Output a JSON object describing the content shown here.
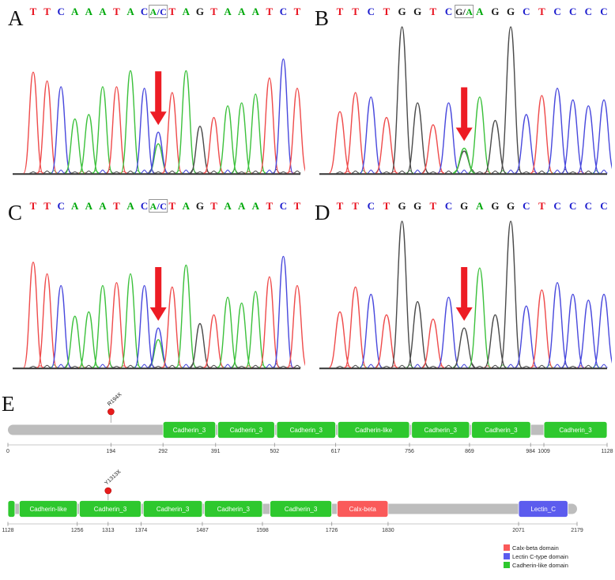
{
  "figure": {
    "panel_labels": [
      "A",
      "B",
      "C",
      "D",
      "E"
    ]
  },
  "colors": {
    "letters": {
      "A": "#00a80b",
      "C": "#1c1ccd",
      "G": "#1a1a1a",
      "T": "#e8121f"
    },
    "traces": {
      "A": "#3cc13c",
      "C": "#4848dd",
      "G": "#4a4a4a",
      "T": "#ef4b4b"
    },
    "arrow": "#ed1c24"
  },
  "chart_data": [
    {
      "type": "line",
      "panel": "A",
      "sequence": [
        "T",
        "T",
        "C",
        "A",
        "A",
        "A",
        "T",
        "A",
        "C",
        {
          "t": "A/C",
          "boxed": true,
          "ck": [
            "A",
            "C",
            "C"
          ]
        },
        "T",
        "A",
        "G",
        "T",
        "A",
        "A",
        "A",
        "T",
        "C",
        "T"
      ],
      "arrow_index": 9,
      "peaks": [
        {
          "base": "T",
          "h": 0.69
        },
        {
          "base": "T",
          "h": 0.63
        },
        {
          "base": "C",
          "h": 0.59
        },
        {
          "base": "A",
          "h": 0.37
        },
        {
          "base": "A",
          "h": 0.4
        },
        {
          "base": "A",
          "h": 0.59
        },
        {
          "base": "T",
          "h": 0.59
        },
        {
          "base": "A",
          "h": 0.7
        },
        {
          "base": "C",
          "h": 0.58
        },
        {
          "het": [
            {
              "base": "C",
              "h": 0.28
            },
            {
              "base": "A",
              "h": 0.2
            }
          ]
        },
        {
          "base": "T",
          "h": 0.55
        },
        {
          "base": "A",
          "h": 0.7
        },
        {
          "base": "G",
          "h": 0.32
        },
        {
          "base": "T",
          "h": 0.38
        },
        {
          "base": "A",
          "h": 0.46
        },
        {
          "base": "A",
          "h": 0.48
        },
        {
          "base": "A",
          "h": 0.54
        },
        {
          "base": "T",
          "h": 0.65
        },
        {
          "base": "C",
          "h": 0.78
        },
        {
          "base": "T",
          "h": 0.58
        }
      ]
    },
    {
      "type": "line",
      "panel": "B",
      "sequence": [
        "T",
        "T",
        "C",
        "T",
        "G",
        "G",
        "T",
        "C",
        {
          "t": "G/A",
          "boxed": true,
          "ck": [
            "G",
            "G",
            "A"
          ]
        },
        "A",
        "G",
        "G",
        "C",
        "T",
        "C",
        "C",
        "C",
        "C"
      ],
      "arrow_index": 8,
      "peaks": [
        {
          "base": "T",
          "h": 0.42
        },
        {
          "base": "T",
          "h": 0.55
        },
        {
          "base": "C",
          "h": 0.52
        },
        {
          "base": "T",
          "h": 0.38
        },
        {
          "base": "G",
          "h": 1.0
        },
        {
          "base": "G",
          "h": 0.48
        },
        {
          "base": "T",
          "h": 0.33
        },
        {
          "base": "C",
          "h": 0.48
        },
        {
          "het": [
            {
              "base": "A",
              "h": 0.17
            },
            {
              "base": "G",
              "h": 0.15
            }
          ]
        },
        {
          "base": "A",
          "h": 0.52
        },
        {
          "base": "G",
          "h": 0.36
        },
        {
          "base": "G",
          "h": 1.0
        },
        {
          "base": "C",
          "h": 0.4
        },
        {
          "base": "T",
          "h": 0.53
        },
        {
          "base": "C",
          "h": 0.58
        },
        {
          "base": "C",
          "h": 0.5
        },
        {
          "base": "C",
          "h": 0.46
        },
        {
          "base": "C",
          "h": 0.5
        }
      ]
    },
    {
      "type": "line",
      "panel": "C",
      "sequence": [
        "T",
        "T",
        "C",
        "A",
        "A",
        "A",
        "T",
        "A",
        "C",
        {
          "t": "A/C",
          "boxed": true,
          "ck": [
            "A",
            "C",
            "C"
          ]
        },
        "T",
        "A",
        "G",
        "T",
        "A",
        "A",
        "A",
        "T",
        "C",
        "T"
      ],
      "arrow_index": 9,
      "peaks": [
        {
          "base": "T",
          "h": 0.72
        },
        {
          "base": "T",
          "h": 0.64
        },
        {
          "base": "C",
          "h": 0.56
        },
        {
          "base": "A",
          "h": 0.35
        },
        {
          "base": "A",
          "h": 0.38
        },
        {
          "base": "A",
          "h": 0.56
        },
        {
          "base": "T",
          "h": 0.58
        },
        {
          "base": "A",
          "h": 0.64
        },
        {
          "base": "C",
          "h": 0.56
        },
        {
          "het": [
            {
              "base": "C",
              "h": 0.27
            },
            {
              "base": "A",
              "h": 0.19
            }
          ]
        },
        {
          "base": "T",
          "h": 0.55
        },
        {
          "base": "A",
          "h": 0.7
        },
        {
          "base": "G",
          "h": 0.3
        },
        {
          "base": "T",
          "h": 0.36
        },
        {
          "base": "A",
          "h": 0.48
        },
        {
          "base": "A",
          "h": 0.44
        },
        {
          "base": "A",
          "h": 0.52
        },
        {
          "base": "T",
          "h": 0.62
        },
        {
          "base": "C",
          "h": 0.76
        },
        {
          "base": "T",
          "h": 0.56
        }
      ]
    },
    {
      "type": "line",
      "panel": "D",
      "sequence": [
        "T",
        "T",
        "C",
        "T",
        "G",
        "G",
        "T",
        "C",
        "G",
        "A",
        "G",
        "G",
        "C",
        "T",
        "C",
        "C",
        "C",
        "C"
      ],
      "arrow_index": 8,
      "peaks": [
        {
          "base": "T",
          "h": 0.38
        },
        {
          "base": "T",
          "h": 0.55
        },
        {
          "base": "C",
          "h": 0.5
        },
        {
          "base": "T",
          "h": 0.36
        },
        {
          "base": "G",
          "h": 1.0
        },
        {
          "base": "G",
          "h": 0.45
        },
        {
          "base": "T",
          "h": 0.33
        },
        {
          "base": "C",
          "h": 0.48
        },
        {
          "base": "G",
          "h": 0.27
        },
        {
          "base": "A",
          "h": 0.68
        },
        {
          "base": "G",
          "h": 0.36
        },
        {
          "base": "G",
          "h": 1.0
        },
        {
          "base": "C",
          "h": 0.42
        },
        {
          "base": "T",
          "h": 0.53
        },
        {
          "base": "C",
          "h": 0.58
        },
        {
          "base": "C",
          "h": 0.5
        },
        {
          "base": "C",
          "h": 0.46
        },
        {
          "base": "C",
          "h": 0.5
        }
      ]
    },
    {
      "type": "table",
      "panel": "E",
      "backbone_color": "#bdbdbd",
      "lollipop_color": "#e81c1c",
      "domain_colors": {
        "cadherin": "#2ec82e",
        "calx": "#fa5a5a",
        "lectin": "#5c5cee"
      },
      "rows": [
        {
          "start": 0,
          "end": 1128,
          "ticks": [
            0,
            194,
            292,
            391,
            502,
            617,
            756,
            869,
            984,
            1009,
            1128
          ],
          "mutations": [
            {
              "label": "R194X",
              "pos": 194
            }
          ],
          "domains": [
            {
              "name": "Cadherin_3",
              "start": 292,
              "end": 391,
              "type": "cadherin"
            },
            {
              "name": "Cadherin_3",
              "start": 395,
              "end": 502,
              "type": "cadherin"
            },
            {
              "name": "Cadherin_3",
              "start": 506,
              "end": 617,
              "type": "cadherin"
            },
            {
              "name": "Cadherin-like",
              "start": 621,
              "end": 756,
              "type": "cadherin"
            },
            {
              "name": "Cadherin_3",
              "start": 760,
              "end": 869,
              "type": "cadherin"
            },
            {
              "name": "Cadherin_3",
              "start": 873,
              "end": 984,
              "type": "cadherin"
            },
            {
              "name": "Cadherin_3",
              "start": 1009,
              "end": 1128,
              "type": "cadherin"
            }
          ]
        },
        {
          "start": 1128,
          "end": 2179,
          "ticks": [
            1128,
            1256,
            1313,
            1374,
            1487,
            1598,
            1726,
            1830,
            2071,
            2179
          ],
          "mutations": [
            {
              "label": "Y1313X",
              "pos": 1313
            }
          ],
          "domains": [
            {
              "name": "",
              "start": 1128,
              "end": 1141,
              "type": "cadherin"
            },
            {
              "name": "Cadherin-like",
              "start": 1149,
              "end": 1256,
              "type": "cadherin"
            },
            {
              "name": "Cadherin_3",
              "start": 1260,
              "end": 1374,
              "type": "cadherin"
            },
            {
              "name": "Cadherin_3",
              "start": 1378,
              "end": 1487,
              "type": "cadherin"
            },
            {
              "name": "Cadherin_3",
              "start": 1491,
              "end": 1598,
              "type": "cadherin"
            },
            {
              "name": "Cadherin_3",
              "start": 1612,
              "end": 1726,
              "type": "cadherin"
            },
            {
              "name": "Calx-beta",
              "start": 1736,
              "end": 1830,
              "type": "calx"
            },
            {
              "name": "Lectin_C",
              "start": 2071,
              "end": 2162,
              "type": "lectin"
            }
          ]
        }
      ],
      "legend": [
        {
          "label": "Calx-beta domain",
          "type": "calx"
        },
        {
          "label": "Lectin C-type domain",
          "type": "lectin"
        },
        {
          "label": "Cadherin-like domain",
          "type": "cadherin"
        }
      ]
    }
  ]
}
